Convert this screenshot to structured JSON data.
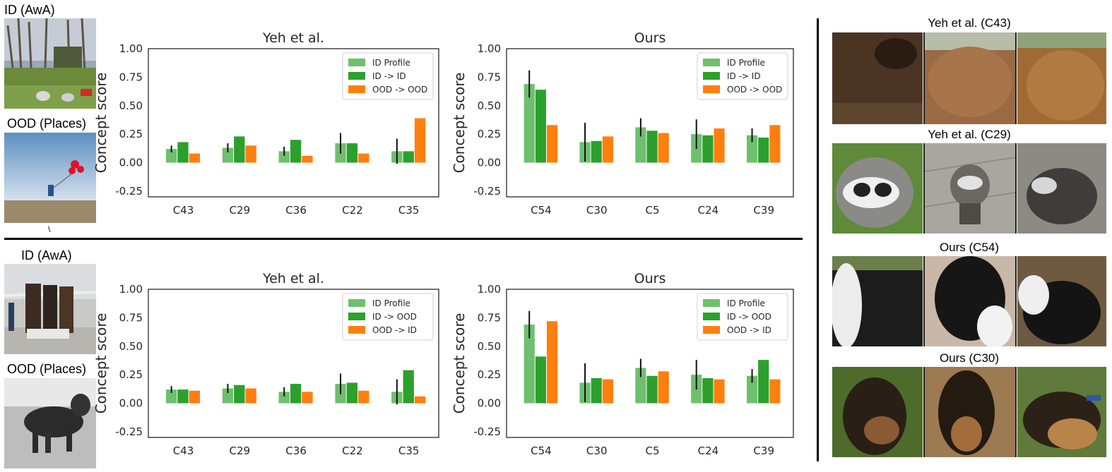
{
  "panels": [
    {
      "id_label": "ID (AwA)",
      "ood_label": "OOD (Places)",
      "stray_mark": "\\"
    },
    {
      "id_label": "ID (AwA)",
      "ood_label": "OOD (Places)"
    }
  ],
  "gallery": [
    {
      "title": "Yeh et al. (C43)",
      "subject": "bison fur patches"
    },
    {
      "title": "Yeh et al. (C29)",
      "subject": "raccoon faces"
    },
    {
      "title": "Ours (C54)",
      "subject": "black and white dog fur"
    },
    {
      "title": "Ours (C30)",
      "subject": "german shepherd dogs"
    }
  ],
  "colors": {
    "profile": "#6fbf6f",
    "green": "#2ca02c",
    "orange": "#ff7f0e",
    "axis": "#262626"
  },
  "chart_data": [
    {
      "type": "bar",
      "title": "Yeh et al.",
      "ylabel": "Concept score",
      "ylim": [
        -0.3,
        1.0
      ],
      "yticks": [
        -0.25,
        0.0,
        0.25,
        0.5,
        0.75,
        1.0
      ],
      "categories": [
        "C43",
        "C29",
        "C36",
        "C22",
        "C35"
      ],
      "series": [
        {
          "name": "ID Profile",
          "values": [
            0.12,
            0.13,
            0.1,
            0.17,
            0.1
          ],
          "err": [
            0.03,
            0.04,
            0.04,
            0.09,
            0.11
          ]
        },
        {
          "name": "ID -> ID",
          "values": [
            0.18,
            0.23,
            0.2,
            0.17,
            0.1
          ]
        },
        {
          "name": "OOD -> OOD",
          "values": [
            0.08,
            0.15,
            0.06,
            0.08,
            0.39
          ]
        }
      ],
      "legend": "top-right"
    },
    {
      "type": "bar",
      "title": "Ours",
      "ylabel": "Concept score",
      "ylim": [
        -0.3,
        1.0
      ],
      "yticks": [
        -0.25,
        0.0,
        0.25,
        0.5,
        0.75,
        1.0
      ],
      "categories": [
        "C54",
        "C30",
        "C5",
        "C24",
        "C39"
      ],
      "series": [
        {
          "name": "ID Profile",
          "values": [
            0.69,
            0.18,
            0.31,
            0.25,
            0.24
          ],
          "err": [
            0.12,
            0.17,
            0.08,
            0.13,
            0.06
          ]
        },
        {
          "name": "ID -> ID",
          "values": [
            0.64,
            0.19,
            0.28,
            0.24,
            0.22
          ]
        },
        {
          "name": "OOD -> OOD",
          "values": [
            0.33,
            0.23,
            0.26,
            0.3,
            0.33
          ]
        }
      ],
      "legend": "top-right"
    },
    {
      "type": "bar",
      "title": "Yeh et al.",
      "ylabel": "Concept score",
      "ylim": [
        -0.3,
        1.0
      ],
      "yticks": [
        -0.25,
        0.0,
        0.25,
        0.5,
        0.75,
        1.0
      ],
      "categories": [
        "C43",
        "C29",
        "C36",
        "C22",
        "C35"
      ],
      "series": [
        {
          "name": "ID Profile",
          "values": [
            0.12,
            0.13,
            0.1,
            0.17,
            0.1
          ],
          "err": [
            0.03,
            0.04,
            0.04,
            0.09,
            0.11
          ]
        },
        {
          "name": "ID -> OOD",
          "values": [
            0.12,
            0.16,
            0.17,
            0.18,
            0.29
          ]
        },
        {
          "name": "OOD -> ID",
          "values": [
            0.11,
            0.13,
            0.1,
            0.11,
            0.06
          ]
        }
      ],
      "legend": "top-right"
    },
    {
      "type": "bar",
      "title": "Ours",
      "ylabel": "Concept score",
      "ylim": [
        -0.3,
        1.0
      ],
      "yticks": [
        -0.25,
        0.0,
        0.25,
        0.5,
        0.75,
        1.0
      ],
      "categories": [
        "C54",
        "C30",
        "C5",
        "C24",
        "C39"
      ],
      "series": [
        {
          "name": "ID Profile",
          "values": [
            0.69,
            0.18,
            0.31,
            0.25,
            0.24
          ],
          "err": [
            0.12,
            0.17,
            0.08,
            0.13,
            0.06
          ]
        },
        {
          "name": "ID -> OOD",
          "values": [
            0.41,
            0.22,
            0.24,
            0.22,
            0.38
          ]
        },
        {
          "name": "OOD -> ID",
          "values": [
            0.72,
            0.21,
            0.28,
            0.21,
            0.21
          ]
        }
      ],
      "legend": "top-right"
    }
  ]
}
